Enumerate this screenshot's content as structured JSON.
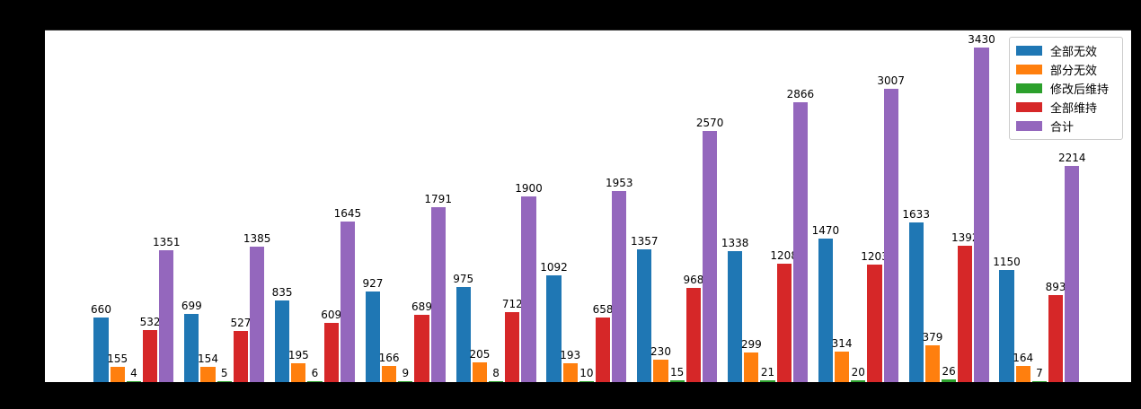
{
  "figure": {
    "background_color": "#000000",
    "plot_background_color": "#ffffff",
    "title": ""
  },
  "chart_data": {
    "type": "bar",
    "grouping": "grouped",
    "n_groups": 11,
    "x_tick_labels_visible": false,
    "y_axis_tick_labels_visible": false,
    "xlabel": "",
    "ylabel": "",
    "title": "",
    "ylim": [
      0,
      3600
    ],
    "grid": false,
    "legend_position": "upper-right",
    "bar_value_labels_shown": true,
    "series": [
      {
        "name": "全部无效",
        "color": "#1f77b4",
        "values": [
          660,
          699,
          835,
          927,
          975,
          1092,
          1357,
          1338,
          1470,
          1633,
          1150
        ]
      },
      {
        "name": "部分无效",
        "color": "#ff7f0e",
        "values": [
          155,
          154,
          195,
          166,
          205,
          193,
          230,
          299,
          314,
          379,
          164
        ]
      },
      {
        "name": "修改后维持",
        "color": "#2ca02c",
        "values": [
          4,
          5,
          6,
          9,
          8,
          10,
          15,
          21,
          20,
          26,
          7
        ]
      },
      {
        "name": "全部维持",
        "color": "#d62728",
        "values": [
          532,
          527,
          609,
          689,
          712,
          658,
          968,
          1208,
          1203,
          1392,
          893
        ]
      },
      {
        "name": "合计",
        "color": "#9467bd",
        "values": [
          1351,
          1385,
          1645,
          1791,
          1900,
          1953,
          2570,
          2866,
          3007,
          3430,
          2214
        ]
      }
    ]
  }
}
